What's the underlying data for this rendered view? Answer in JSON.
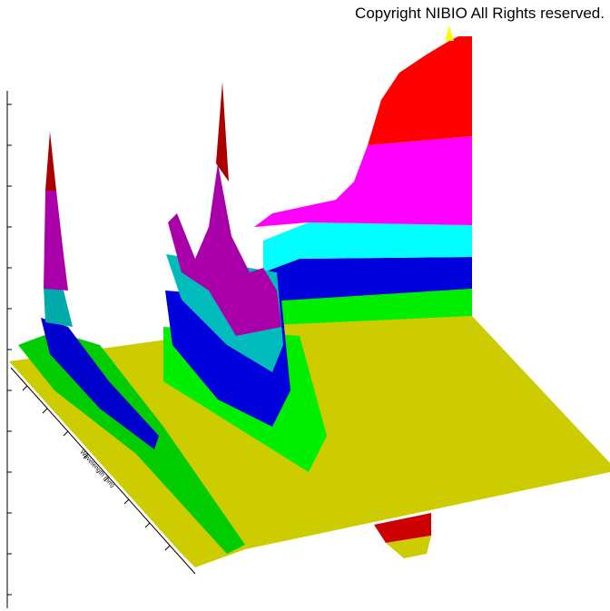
{
  "copyright": "Copyright NIBIO All Rights reserved.",
  "axis_label": "Wavelength (nm)"
}
